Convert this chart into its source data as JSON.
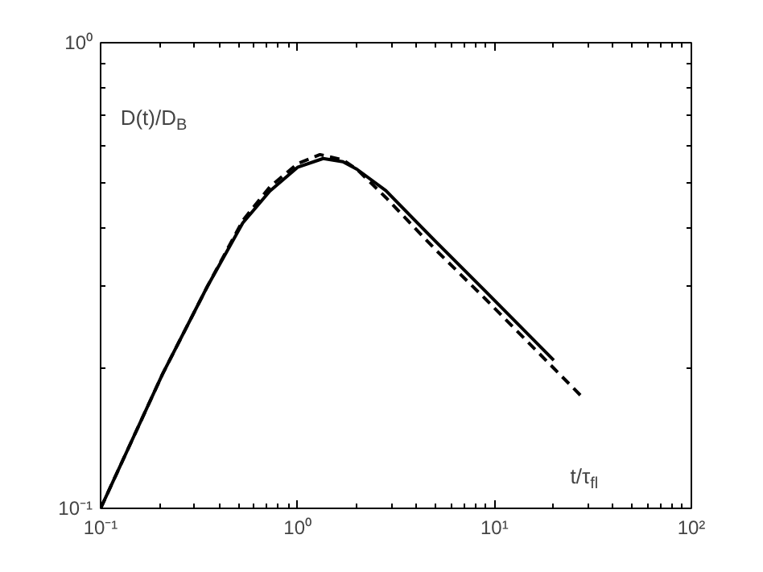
{
  "chart_data": {
    "type": "line",
    "xlabel": "t/τ$_{fl}$",
    "ylabel": "D(t)/D$_{B}$",
    "log": "xy",
    "xlim": [
      0.1,
      100
    ],
    "ylim": [
      0.1,
      1
    ],
    "xticks": [
      {
        "value": 0.1,
        "label": "10⁻¹"
      },
      {
        "value": 1,
        "label": "10⁰"
      },
      {
        "value": 10,
        "label": "10¹"
      },
      {
        "value": 100,
        "label": "10²"
      }
    ],
    "yticks": [
      {
        "value": 0.1,
        "label": "10⁻¹"
      },
      {
        "value": 1,
        "label": "10⁰"
      }
    ],
    "grid": false,
    "marker": "none",
    "series": [
      {
        "color": "#000000",
        "line_style": "solid",
        "x": [
          0.1,
          0.206,
          0.349,
          0.527,
          0.723,
          1.0,
          1.35,
          1.7,
          2.0,
          2.81,
          5.0,
          8.97,
          20
        ],
        "values": [
          0.1,
          0.194,
          0.3,
          0.41,
          0.48,
          0.54,
          0.564,
          0.555,
          0.535,
          0.481,
          0.375,
          0.293,
          0.208
        ]
      },
      {
        "color": "#000000",
        "line_style": "dashed",
        "x": [
          0.1,
          0.206,
          0.349,
          0.527,
          0.723,
          1.0,
          1.3,
          1.7,
          2.0,
          2.81,
          5.0,
          8.97,
          20,
          27.3
        ],
        "values": [
          0.1,
          0.194,
          0.3,
          0.415,
          0.49,
          0.55,
          0.575,
          0.56,
          0.535,
          0.465,
          0.36,
          0.282,
          0.2,
          0.175
        ]
      }
    ]
  }
}
